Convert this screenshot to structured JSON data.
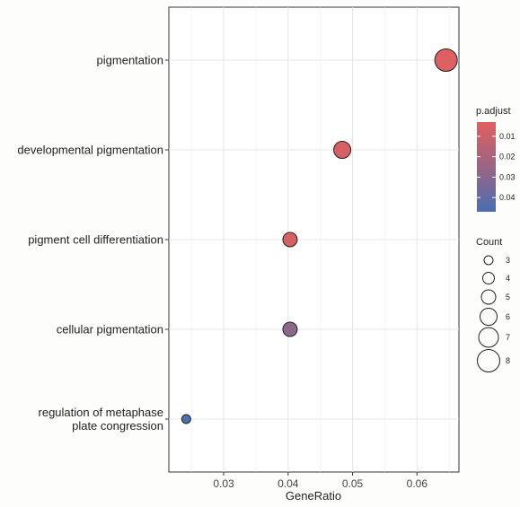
{
  "chart_data": {
    "type": "scatter",
    "title": "",
    "xlabel": "GeneRatio",
    "ylabel": "",
    "xlim": [
      0.0215,
      0.0665
    ],
    "x_ticks": [
      "0.03",
      "0.04",
      "0.05",
      "0.06"
    ],
    "x_tick_values": [
      0.03,
      0.04,
      0.05,
      0.06
    ],
    "grid": true,
    "categories": [
      "pigmentation",
      "developmental pigmentation",
      "pigment cell differentiation",
      "cellular pigmentation",
      "regulation of metaphase plate congression"
    ],
    "category_lines": [
      [
        "pigmentation"
      ],
      [
        "developmental pigmentation"
      ],
      [
        "pigment cell differentiation"
      ],
      [
        "cellular pigmentation"
      ],
      [
        "regulation of metaphase",
        "plate congression"
      ]
    ],
    "points": [
      {
        "term": "pigmentation",
        "gene_ratio": 0.0645,
        "count": 8,
        "p_adjust": 0.004
      },
      {
        "term": "developmental pigmentation",
        "gene_ratio": 0.0484,
        "count": 6,
        "p_adjust": 0.006
      },
      {
        "term": "pigment cell differentiation",
        "gene_ratio": 0.0403,
        "count": 5,
        "p_adjust": 0.006
      },
      {
        "term": "cellular pigmentation",
        "gene_ratio": 0.0403,
        "count": 5,
        "p_adjust": 0.028
      },
      {
        "term": "regulation of metaphase plate congression",
        "gene_ratio": 0.0242,
        "count": 3,
        "p_adjust": 0.046
      }
    ],
    "color_legend": {
      "title": "p.adjust",
      "range": [
        0.003,
        0.047
      ],
      "ticks": [
        "0.01",
        "0.02",
        "0.03",
        "0.04"
      ],
      "tick_values": [
        0.01,
        0.02,
        0.03,
        0.04
      ],
      "low_color": "#e06060",
      "high_color": "#4a6fb0"
    },
    "size_legend": {
      "title": "Count",
      "values": [
        3,
        4,
        5,
        6,
        7,
        8
      ],
      "labels": [
        "3",
        "4",
        "5",
        "6",
        "7",
        "8"
      ]
    },
    "legend_position": "right"
  }
}
